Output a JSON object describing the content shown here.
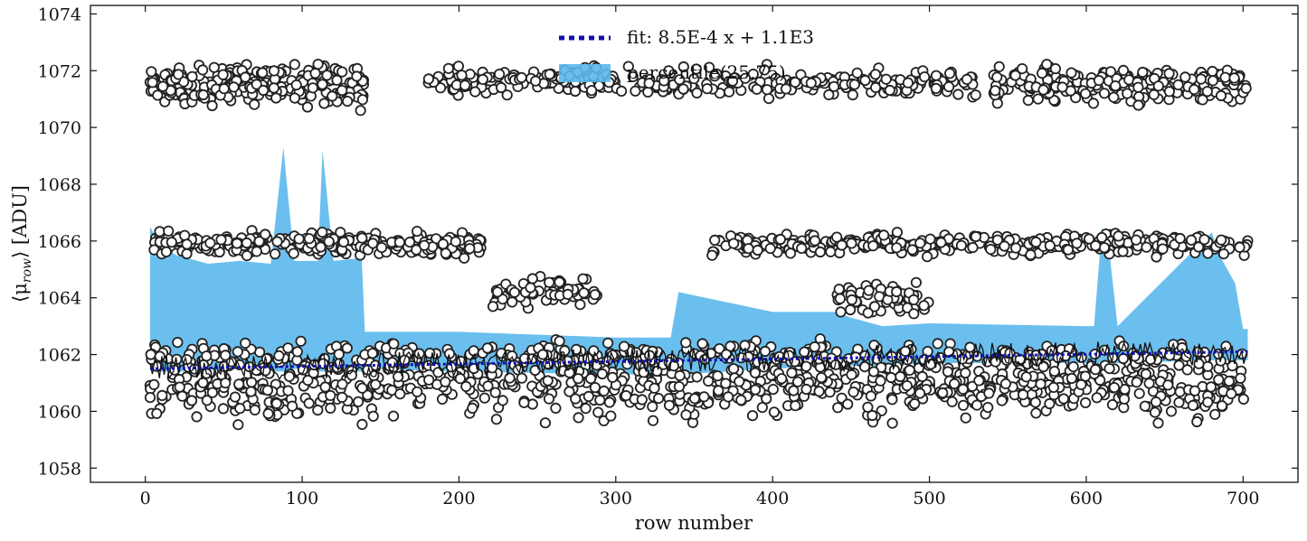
{
  "chart_data": {
    "type": "scatter",
    "title": "",
    "xlabel": "row number",
    "ylabel_main": "⟨μ",
    "ylabel_sub": "row",
    "ylabel_tail": "⟩ [ADU]",
    "xlim": [
      -35,
      735
    ],
    "ylim": [
      1057.5,
      1074.3
    ],
    "xticks": [
      0,
      100,
      200,
      300,
      400,
      500,
      600,
      700
    ],
    "yticks": [
      1058,
      1060,
      1062,
      1064,
      1066,
      1068,
      1070,
      1072,
      1074
    ],
    "legend_position": "top-center",
    "colors": {
      "band": "#5bb8ec",
      "fit": "#1010b0",
      "marker_edge": "#222222",
      "marker_face": "#ffffff",
      "line": "#111111"
    },
    "series": [
      {
        "name": "fit: 8.5E-4 x + 1.1E3",
        "kind": "dotted-line",
        "slope": 0.00085,
        "x": [
          3,
          703
        ],
        "y": [
          1061.5,
          1062.1
        ]
      },
      {
        "name": "percentile(25,75)",
        "kind": "band",
        "x": [
          3,
          10,
          20,
          40,
          60,
          80,
          88,
          95,
          110,
          113,
          120,
          138,
          140,
          200,
          300,
          335,
          340,
          400,
          440,
          450,
          470,
          500,
          600,
          605,
          610,
          615,
          620,
          680,
          685,
          695,
          700,
          703
        ],
        "lower": [
          1061.5,
          1061.4,
          1061.4,
          1061.4,
          1061.5,
          1061.4,
          1061.4,
          1061.5,
          1061.4,
          1061.4,
          1061.4,
          1061.4,
          1061.5,
          1061.4,
          1061.3,
          1061.3,
          1061.3,
          1061.5,
          1061.6,
          1061.6,
          1061.6,
          1061.7,
          1061.7,
          1061.7,
          1061.7,
          1061.7,
          1061.7,
          1061.8,
          1061.8,
          1061.8,
          1061.8,
          1061.8
        ],
        "upper": [
          1066.5,
          1065.8,
          1065.5,
          1065.2,
          1065.3,
          1065.2,
          1069.3,
          1065.3,
          1065.3,
          1069.2,
          1065.3,
          1065.4,
          1062.8,
          1062.8,
          1062.6,
          1062.6,
          1064.2,
          1063.5,
          1063.5,
          1063.3,
          1063.0,
          1063.1,
          1063.0,
          1063.0,
          1066.5,
          1065.5,
          1063.0,
          1066.3,
          1065.5,
          1064.5,
          1062.9,
          1062.9
        ]
      },
      {
        "name": "",
        "kind": "scatter",
        "bands": [
          {
            "y": 1061.0,
            "spread": 1.7,
            "x0": 3,
            "x1": 703,
            "n": 900
          },
          {
            "y": 1062.0,
            "spread": 0.6,
            "x0": 3,
            "x1": 703,
            "n": 220
          },
          {
            "y": 1065.9,
            "spread": 0.55,
            "x0": 3,
            "x1": 215,
            "n": 260
          },
          {
            "y": 1065.9,
            "spread": 0.55,
            "x0": 360,
            "x1": 703,
            "n": 350
          },
          {
            "y": 1071.5,
            "spread": 1.0,
            "x0": 3,
            "x1": 140,
            "n": 260
          },
          {
            "y": 1071.6,
            "spread": 0.7,
            "x0": 180,
            "x1": 530,
            "n": 300
          },
          {
            "y": 1071.5,
            "spread": 0.9,
            "x0": 540,
            "x1": 703,
            "n": 200
          },
          {
            "y": 1064.2,
            "spread": 0.7,
            "x0": 220,
            "x1": 290,
            "n": 70
          },
          {
            "y": 1064.0,
            "spread": 0.8,
            "x0": 440,
            "x1": 500,
            "n": 60
          }
        ]
      }
    ]
  }
}
